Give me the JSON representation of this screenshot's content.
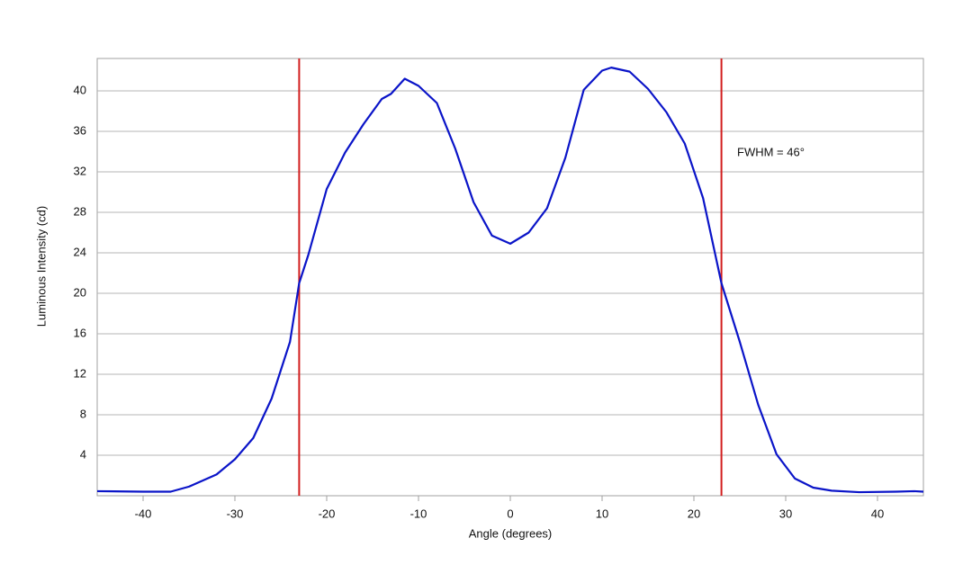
{
  "chart_data": {
    "type": "line",
    "x_label": "Angle (degrees)",
    "y_label": "Luminous Intensity (cd)",
    "annotation": "FWHM = 46°",
    "x": [
      -45,
      -40,
      -37,
      -35,
      -32,
      -30,
      -28,
      -26,
      -24,
      -23,
      -22,
      -20,
      -18,
      -16,
      -14,
      -13,
      -11.5,
      -10,
      -8,
      -6,
      -4,
      -2,
      0,
      2,
      4,
      6,
      8,
      10,
      11,
      13,
      15,
      17,
      19,
      21,
      23,
      25,
      27,
      29,
      31,
      33,
      35,
      38,
      42,
      44,
      45
    ],
    "series": [
      {
        "color": "#0a14c8",
        "values": [
          0.45,
          0.4,
          0.4,
          0.9,
          2.1,
          3.6,
          5.7,
          9.6,
          15.2,
          21,
          23.8,
          30.3,
          33.9,
          36.7,
          39.2,
          39.7,
          41.2,
          40.5,
          38.8,
          34.3,
          29,
          25.7,
          24.9,
          26,
          28.4,
          33.4,
          40.1,
          42,
          42.3,
          41.9,
          40.2,
          37.9,
          34.8,
          29.4,
          21,
          15.2,
          9,
          4.1,
          1.7,
          0.8,
          0.5,
          0.35,
          0.4,
          0.45,
          0.4
        ]
      }
    ],
    "vlines": [
      -23,
      23
    ],
    "vline_color": "#d21e1e",
    "xlim": [
      -45,
      45
    ],
    "xticks": [
      -40,
      -30,
      -20,
      -10,
      0,
      10,
      20,
      30,
      40
    ],
    "ylim": [
      0,
      43.2
    ],
    "yticks": [
      4,
      8,
      12,
      16,
      20,
      24,
      28,
      32,
      36,
      40
    ],
    "grid": true
  }
}
